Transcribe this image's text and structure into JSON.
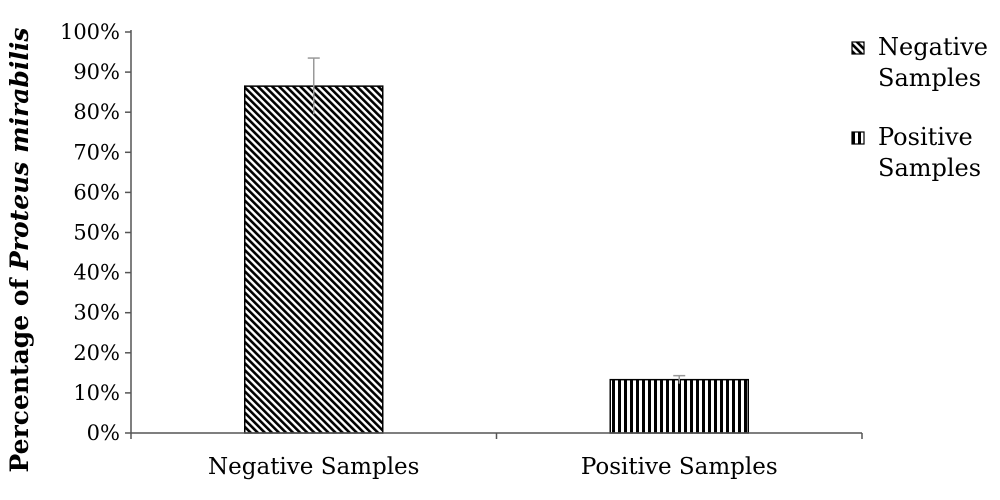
{
  "chart_data": {
    "type": "bar",
    "categories": [
      "Negative Samples",
      "Positive Samples"
    ],
    "series": [
      {
        "name": "Negative Samples",
        "values": [
          86.5,
          null
        ],
        "error": [
          7,
          null
        ],
        "pattern": "diagonal"
      },
      {
        "name": "Positive Samples",
        "values": [
          null,
          13.3
        ],
        "error": [
          null,
          1
        ],
        "pattern": "vertical"
      }
    ],
    "ylabel_prefix": "Percentage of ",
    "ylabel_italic": "Proteus mirabilis",
    "ylim": [
      0,
      100
    ],
    "yticks": [
      0,
      10,
      20,
      30,
      40,
      50,
      60,
      70,
      80,
      90,
      100
    ],
    "ytick_labels": [
      "0%",
      "10%",
      "20%",
      "30%",
      "40%",
      "50%",
      "60%",
      "70%",
      "80%",
      "90%",
      "100%"
    ],
    "legend": {
      "placement": "right",
      "entries": [
        {
          "lines": [
            "Negative",
            "Samples"
          ],
          "pattern": "diagonal"
        },
        {
          "lines": [
            "Positive",
            "Samples"
          ],
          "pattern": "vertical"
        }
      ]
    },
    "grid": false
  }
}
